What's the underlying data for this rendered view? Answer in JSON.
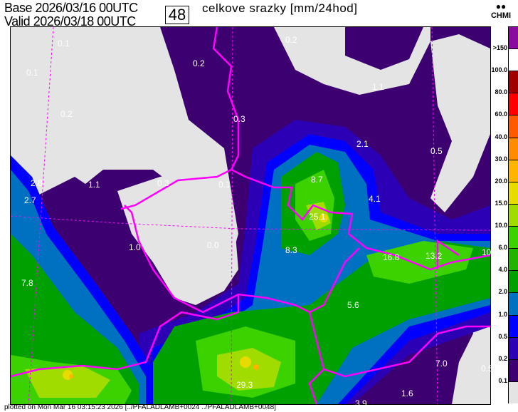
{
  "header": {
    "base_label": "Base 2026/03/16 00UTC",
    "valid_label": "Valid 2026/03/18 00UTC",
    "forecast_hour": "48",
    "title": "celkove srazky [mm/24hod]",
    "logo_text": "CHMI"
  },
  "legend": {
    "labels": [
      ">150",
      "100.0",
      "80.0",
      "60.0",
      "40.0",
      "30.0",
      "20.0",
      "15.0",
      "10.0",
      "6.0",
      "4.0",
      "2.0",
      "1.0",
      "0.5",
      "0.2",
      "0.1"
    ],
    "colors": [
      "#8a0aa0",
      "#ffffff",
      "#a00000",
      "#ff0000",
      "#ff5a00",
      "#ff8c00",
      "#ffb400",
      "#e6dc00",
      "#a0dc00",
      "#3cd200",
      "#20b400",
      "#00a000",
      "#0070c0",
      "#0000ff",
      "#2c00b4",
      "#3c0070",
      "#e4e4e4"
    ]
  },
  "map": {
    "background_color": "#e4e4e4",
    "border_color": "#ff00ff",
    "values": [
      {
        "text": "0.1"
      },
      {
        "text": "0.1"
      },
      {
        "text": "0.2"
      },
      {
        "text": "0.2"
      },
      {
        "text": "0.2"
      },
      {
        "text": "1.1"
      },
      {
        "text": "0.3"
      },
      {
        "text": "2.1"
      },
      {
        "text": "0.5"
      },
      {
        "text": "2.8"
      },
      {
        "text": "1.1"
      },
      {
        "text": "0.3"
      },
      {
        "text": "8.7"
      },
      {
        "text": "0.1"
      },
      {
        "text": "4.1"
      },
      {
        "text": "2.7"
      },
      {
        "text": "25.1"
      },
      {
        "text": "1.0"
      },
      {
        "text": "0.0"
      },
      {
        "text": "8.3"
      },
      {
        "text": "16.8"
      },
      {
        "text": "13.2"
      },
      {
        "text": "10"
      },
      {
        "text": "7.8"
      },
      {
        "text": "5.6"
      },
      {
        "text": "29.3"
      },
      {
        "text": "7.0"
      },
      {
        "text": "0.5"
      },
      {
        "text": "1.6"
      },
      {
        "text": "3.9"
      }
    ]
  },
  "footer": {
    "text": "plotted on Mon Mar 16 03:15:23 2026 [../PFALADLAMB+0024 ../PFALADLAMB+0048]"
  }
}
